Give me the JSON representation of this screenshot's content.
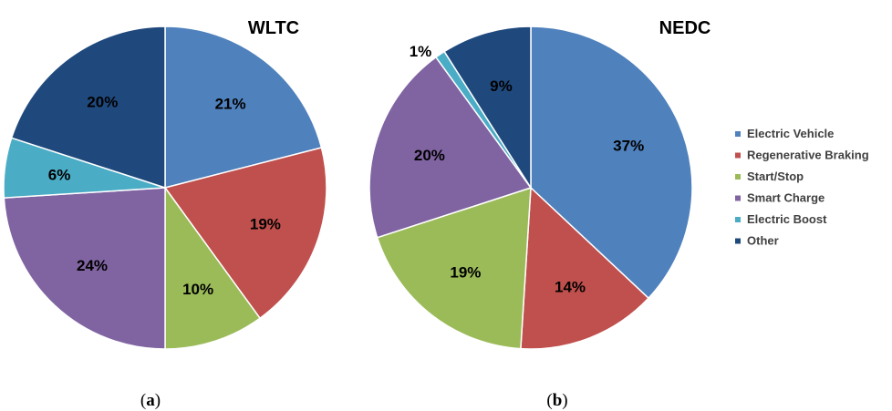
{
  "legend": {
    "entries": [
      {
        "label": "Electric Vehicle",
        "color": "#4f81bd"
      },
      {
        "label": "Regenerative Braking",
        "color": "#c0504d"
      },
      {
        "label": "Start/Stop",
        "color": "#9bbb59"
      },
      {
        "label": "Smart Charge",
        "color": "#8064a2"
      },
      {
        "label": "Electric Boost",
        "color": "#4bacc6"
      },
      {
        "label": "Other",
        "color": "#1f497d"
      }
    ]
  },
  "chart_data": [
    {
      "type": "pie",
      "title": "WLTC",
      "caption": {
        "open": "(",
        "letter": "a",
        "close": ")"
      },
      "categories": [
        "Electric Vehicle",
        "Regenerative Braking",
        "Start/Stop",
        "Smart Charge",
        "Electric Boost",
        "Other"
      ],
      "values": [
        21,
        19,
        10,
        24,
        6,
        20
      ],
      "labels": [
        "21%",
        "19%",
        "10%",
        "24%",
        "6%",
        "20%"
      ]
    },
    {
      "type": "pie",
      "title": "NEDC",
      "caption": {
        "open": "(",
        "letter": "b",
        "close": ")"
      },
      "categories": [
        "Electric Vehicle",
        "Regenerative Braking",
        "Start/Stop",
        "Smart Charge",
        "Electric Boost",
        "Other"
      ],
      "values": [
        37,
        14,
        19,
        20,
        1,
        9
      ],
      "labels": [
        "37%",
        "14%",
        "19%",
        "20%",
        "1%",
        "9%"
      ]
    }
  ]
}
